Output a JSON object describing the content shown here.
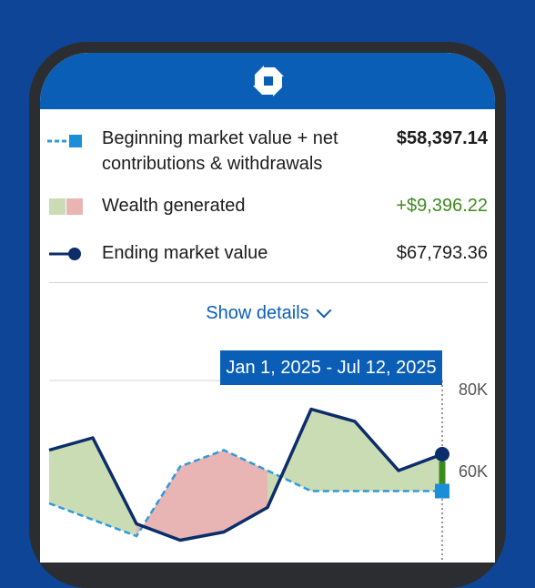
{
  "legend": {
    "beginning": {
      "label_line1": "Beginning market value + net",
      "label_line2": "contributions & withdrawals",
      "value": "$58,397.14"
    },
    "wealth": {
      "label": "Wealth generated",
      "value": "+$9,396.22"
    },
    "ending": {
      "label": "Ending market value",
      "value": "$67,793.36"
    }
  },
  "show_details": {
    "label": "Show details"
  },
  "colors": {
    "brand_blue": "#0a5eb6",
    "background_blue": "#0e4597",
    "navy": "#0b2d6b",
    "gain_green": "#c9dcb3",
    "loss_pink": "#e8b4b4",
    "positive_text": "#3d8b1e",
    "dashed_line": "#2f9ad9"
  },
  "icons": [
    "chase-logo-icon",
    "dashed-line-square-icon",
    "wealth-swatch-icon",
    "line-dot-icon",
    "chevron-down-icon"
  ],
  "chart_data": {
    "type": "area",
    "date_range": "Jan 1, 2025 - Jul 12, 2025",
    "y_ticks": [
      "80K",
      "60K"
    ],
    "series": [
      {
        "values": [
          63000,
          66000,
          45000,
          41000,
          43000,
          49000,
          73000,
          70000,
          58000,
          62000
        ]
      },
      {
        "values": [
          50000,
          46000,
          42000,
          59000,
          63000,
          58000,
          53000,
          53000,
          53000,
          53000
        ]
      }
    ]
  }
}
